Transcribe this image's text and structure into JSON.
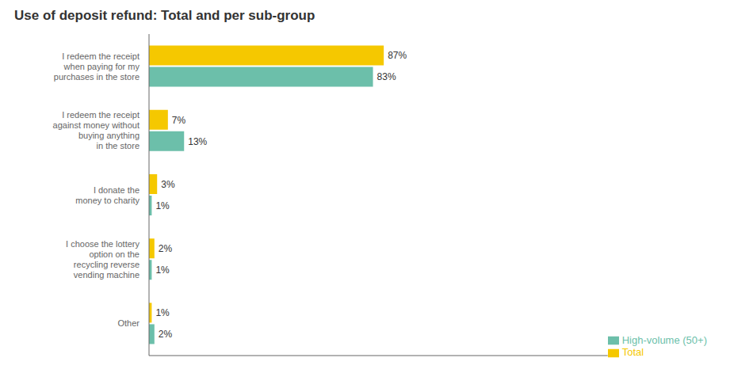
{
  "chart_data": {
    "type": "bar",
    "orientation": "horizontal",
    "title": "Use of deposit refund: Total and per sub-group",
    "categories": [
      "I redeem the receipt\nwhen paying for my\npurchases in the store",
      "I redeem the receipt\nagainst money without\nbuying anything\nin the store",
      "I donate the\nmoney to charity",
      "I choose the lottery\noption on the\nrecycling reverse\nvending machine",
      "Other"
    ],
    "series": [
      {
        "name": "Total",
        "color": "#F5C800",
        "values": [
          87,
          7,
          3,
          2,
          1
        ],
        "value_labels": [
          "87%",
          "7%",
          "3%",
          "2%",
          "1%"
        ]
      },
      {
        "name": "High-volume (50+)",
        "color": "#6CBFAA",
        "values": [
          83,
          13,
          1,
          1,
          2
        ],
        "value_labels": [
          "83%",
          "13%",
          "1%",
          "1%",
          "2%"
        ]
      }
    ],
    "xlim": [
      0,
      170
    ],
    "data_labels": true,
    "tick_labels": "y",
    "legend": "lower right",
    "grid": false
  }
}
